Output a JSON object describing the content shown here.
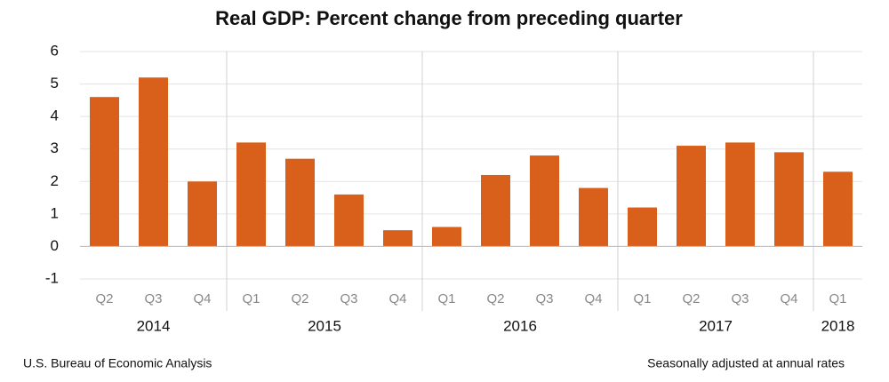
{
  "chart_data": {
    "type": "bar",
    "title": "Real GDP:  Percent change from preceding quarter",
    "groups": [
      {
        "name": "2014",
        "categories": [
          "Q2",
          "Q3",
          "Q4"
        ],
        "values": [
          4.6,
          5.2,
          2.0
        ]
      },
      {
        "name": "2015",
        "categories": [
          "Q1",
          "Q2",
          "Q3",
          "Q4"
        ],
        "values": [
          3.2,
          2.7,
          1.6,
          0.5
        ]
      },
      {
        "name": "2016",
        "categories": [
          "Q1",
          "Q2",
          "Q3",
          "Q4"
        ],
        "values": [
          0.6,
          2.2,
          2.8,
          1.8
        ]
      },
      {
        "name": "2017",
        "categories": [
          "Q1",
          "Q2",
          "Q3",
          "Q4"
        ],
        "values": [
          1.2,
          3.1,
          3.2,
          2.9
        ]
      },
      {
        "name": "2018",
        "categories": [
          "Q1"
        ],
        "values": [
          2.3
        ]
      }
    ],
    "color": "#d9601a",
    "ylim": [
      -1,
      6
    ],
    "yticks": [
      -1,
      0,
      1,
      2,
      3,
      4,
      5,
      6
    ],
    "grid": true,
    "source": "U.S. Bureau of Economic Analysis",
    "note": "Seasonally adjusted at annual rates"
  }
}
